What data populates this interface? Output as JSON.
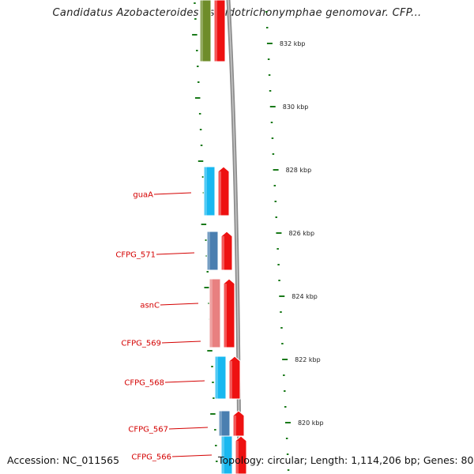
{
  "header": {
    "title": "Candidatus Azobacteroides pseudotrichonymphae genomovar. CFP..."
  },
  "footer": {
    "accession": "Accession: NC_011565",
    "summary": "Topology: circular; Length: 1,114,206 bp; Genes: 800"
  },
  "colors": {
    "tick": "#1a7a1a",
    "backbone": "#8c8c8c",
    "label": "#d40000",
    "forward_gene": "#ee1111",
    "cyan_gene": "#18b8f0",
    "steel_gene": "#4a7fb0",
    "pink_gene": "#e88080",
    "olive_gene": "#6e8c2a"
  },
  "scale": {
    "labels": [
      "832 kbp",
      "830 kbp",
      "828 kbp",
      "826 kbp",
      "824 kbp",
      "822 kbp",
      "820 kbp"
    ]
  },
  "genes": [
    {
      "name": "guaA",
      "color": "cyan"
    },
    {
      "name": "CFPG_571",
      "color": "steel"
    },
    {
      "name": "asnC",
      "color": "pink"
    },
    {
      "name": "CFPG_569",
      "color": "pink"
    },
    {
      "name": "CFPG_568",
      "color": "cyan"
    },
    {
      "name": "CFPG_567",
      "color": "steel"
    },
    {
      "name": "CFPG_566",
      "color": "cyan"
    }
  ]
}
